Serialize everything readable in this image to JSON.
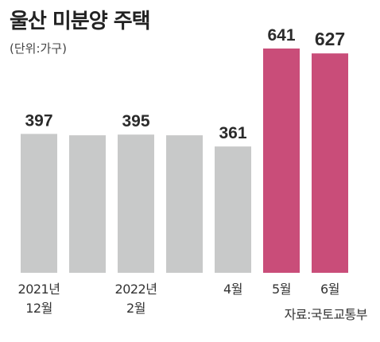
{
  "chart_data": {
    "type": "bar",
    "title": "울산 미분양 주택",
    "unit": "(단위:가구)",
    "source": "자료:국토교통부",
    "categories": [
      [
        "2021년",
        "12월"
      ],
      [
        "",
        ""
      ],
      [
        "2022년",
        "2월"
      ],
      [
        "",
        ""
      ],
      [
        "4월",
        ""
      ],
      [
        "5월",
        ""
      ],
      [
        "6월",
        ""
      ]
    ],
    "values": [
      397,
      393,
      395,
      393,
      361,
      641,
      627
    ],
    "labels": [
      "397",
      "",
      "395",
      "",
      "361",
      "641",
      "627"
    ],
    "colors": [
      "#c8c9c9",
      "#c8c9c9",
      "#c8c9c9",
      "#c8c9c9",
      "#c8c9c9",
      "#c94d79",
      "#c94d79"
    ],
    "ylim": [
      0,
      641
    ],
    "grid": false,
    "legend": "none"
  }
}
